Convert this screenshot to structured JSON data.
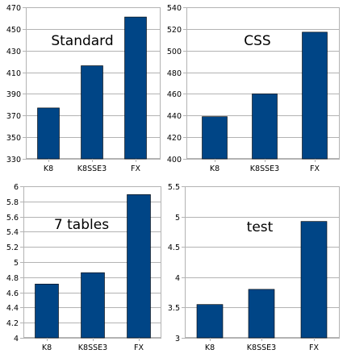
{
  "colors": {
    "bar": "#004586",
    "grid": "#b3b3b3",
    "frame": "#b3b3b3"
  },
  "chart_data": [
    {
      "type": "bar",
      "title": "Standard",
      "categories": [
        "K8",
        "K8SSE3",
        "FX"
      ],
      "values": [
        377,
        416,
        461
      ],
      "ylim": [
        330,
        470
      ],
      "yticks": [
        330,
        350,
        370,
        390,
        410,
        430,
        450,
        470
      ],
      "ytick_labels": [
        "330",
        "350",
        "370",
        "390",
        "410",
        "430",
        "450",
        "470"
      ],
      "grid": true,
      "xlabel": "",
      "ylabel": ""
    },
    {
      "type": "bar",
      "title": "CSS",
      "categories": [
        "K8",
        "K8SSE3",
        "FX"
      ],
      "values": [
        439,
        460,
        517
      ],
      "ylim": [
        400,
        540
      ],
      "yticks": [
        400,
        420,
        440,
        460,
        480,
        500,
        520,
        540
      ],
      "ytick_labels": [
        "400",
        "420",
        "440",
        "460",
        "480",
        "500",
        "520",
        "540"
      ],
      "grid": true,
      "xlabel": "",
      "ylabel": ""
    },
    {
      "type": "bar",
      "title": "7 tables",
      "categories": [
        "K8",
        "K8SSE3",
        "FX"
      ],
      "values": [
        4.71,
        4.86,
        5.89
      ],
      "ylim": [
        4,
        6
      ],
      "yticks": [
        4,
        4.2,
        4.4,
        4.6,
        4.8,
        5,
        5.2,
        5.4,
        5.6,
        5.8,
        6
      ],
      "ytick_labels": [
        "4",
        "4.2",
        "4.4",
        "4.6",
        "4.8",
        "5",
        "5.2",
        "5.4",
        "5.6",
        "5.8",
        "6"
      ],
      "grid": true,
      "xlabel": "",
      "ylabel": ""
    },
    {
      "type": "bar",
      "title": "test",
      "categories": [
        "K8",
        "K8SSE3",
        "FX"
      ],
      "values": [
        3.55,
        3.8,
        4.92
      ],
      "ylim": [
        3,
        5.5
      ],
      "yticks": [
        3,
        3.5,
        4,
        4.5,
        5,
        5.5
      ],
      "ytick_labels": [
        "3",
        "3.5",
        "4",
        "4.5",
        "5",
        "5.5"
      ],
      "grid": true,
      "xlabel": "",
      "ylabel": ""
    }
  ]
}
